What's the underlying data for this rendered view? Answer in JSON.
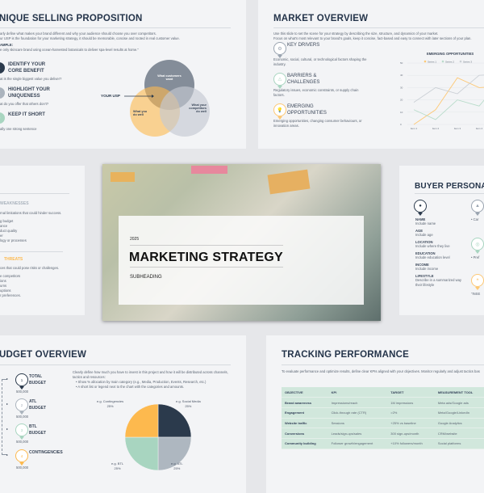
{
  "usp": {
    "title": "NIQUE SELLING PROPOSITION",
    "intro": [
      "arly define what makes your brand different and why your audience should choose you over competitors.",
      "ur USP is the foundation for your marketing strategy, it should be memorable, concise and rooted in real customer value."
    ],
    "example_label": "AMPLE:",
    "example": "e only skincare brand using ocean-harvested botanicals to deliver spa-level results at home.\"",
    "steps": [
      {
        "n": "1",
        "title": "IDENTIFY YOUR CORE BENEFIT",
        "desc": "at is the single biggest value you deliver?",
        "color": "#2b3a4c"
      },
      {
        "n": "2",
        "title": "HIGHLIGHT YOUR UNIQUENESS",
        "desc": "at do you offer that others don't?",
        "color": "#aab3bd"
      },
      {
        "n": "3",
        "title": "KEEP IT SHORT",
        "desc": "ally one strong sentence",
        "color": "#a8d5c0"
      }
    ],
    "venn": {
      "usp_label": "YOUR USP",
      "customers": "What customers want",
      "you": "What you do well",
      "competitors": "What your competitors do well",
      "colors": [
        "#5f6b7a",
        "#fdb94e",
        "#c4cad2"
      ]
    }
  },
  "market": {
    "title": "MARKET OVERVIEW",
    "intro": [
      "Use this slide to set the scene for your strategy by describing the size, structure, and dynamics of your market.",
      "Focus on what's most relevant to your brand's goals, keep it concise, fact-based and easy to connect with later sections of your plan."
    ],
    "items": [
      {
        "icon": "gear-icon",
        "title": "KEY DRIVERS",
        "desc": "Economic, social, cultural, or technological factors shaping the industry.",
        "color": "#9aa4b0"
      },
      {
        "icon": "warning-icon",
        "title": "BARRIERS & CHALLENGES",
        "desc": "Regulatory issues, economic constraints, or supply chain factors.",
        "color": "#a8d5c0"
      },
      {
        "icon": "lightbulb-icon",
        "title": "EMERGING OPPORTUNITIES",
        "desc": "Emerging opportunities, changing consumer behaviours, or innovation areas.",
        "color": "#fdc875"
      }
    ]
  },
  "chart_data": {
    "type": "line",
    "title": "EMERGING OPPORTUNITIES",
    "categories": [
      "Item 1",
      "Item 2",
      "Item 3",
      "Item 4",
      "Item 5"
    ],
    "ylim": [
      0,
      50
    ],
    "yticks": [
      0,
      10,
      20,
      30,
      40,
      50
    ],
    "legend": "top",
    "grid": true,
    "series": [
      {
        "name": "Series 1",
        "values": [
          0,
          12,
          38,
          30,
          31
        ],
        "color": "#fdc875"
      },
      {
        "name": "Series 2",
        "values": [
          12,
          4,
          20,
          15,
          36
        ],
        "color": "#b9dccb"
      },
      {
        "name": "Series 3",
        "values": [
          18,
          30,
          25,
          40,
          41
        ],
        "color": "#cbd0d6"
      }
    ]
  },
  "swot": {
    "weak_title": "WEAKNESSES",
    "weak_desc": "rnal limitations that could hinder success.",
    "weak_items": [
      "g budget",
      "ance",
      "duct quality",
      "er",
      "logy or processes"
    ],
    "threat_title": "THREATS",
    "threat_desc": "ces that could pose risks or challenges.",
    "threat_items": [
      "e competitors",
      "ions",
      "urns",
      "uptions",
      "r preferences."
    ]
  },
  "cover": {
    "year": "2025",
    "title": "MARKETING STRATEGY",
    "subheading": "SUBHEADING"
  },
  "persona": {
    "title": "BUYER PERSONA",
    "fields": [
      {
        "label": "NAME",
        "value": "Include name"
      },
      {
        "label": "AGE",
        "value": "Include age"
      },
      {
        "label": "LOCATION",
        "value": "Include where they live"
      },
      {
        "label": "EDUCATION",
        "value": "Include education level"
      },
      {
        "label": "INCOME",
        "value": "Include income"
      },
      {
        "label": "LIFESTYLE",
        "value": "Describe in a summarized way their lifestyle"
      }
    ],
    "side": [
      "• Car",
      "• Pref",
      "\"INSE"
    ]
  },
  "budget": {
    "title": "UDGET OVERVIEW",
    "intro": "Clearly define how much you have to invest in this project and how it will be distributed across channels, tactics and resources:",
    "bullets": [
      "Show % allocation by main category (e.g., Media, Production, Events, Research, etc.)",
      "A short list or legend next to the chart with the categories and amounts."
    ],
    "items": [
      {
        "n": "1",
        "title": "TOTAL BUDGET",
        "amount": "500,000",
        "color": "#2b3a4c"
      },
      {
        "n": "2",
        "title": "ATL BUDGET",
        "amount": "500,000",
        "color": "#aab3bd"
      },
      {
        "n": "3",
        "title": "BTL BUDGET",
        "amount": "500,000",
        "color": "#a8d5c0"
      },
      {
        "n": "4",
        "title": "CONTINGENCIES",
        "amount": "500,000",
        "color": "#fdb94e"
      }
    ],
    "pie": [
      {
        "label": "e.g. Social Media",
        "pct": "25%",
        "value": 25,
        "color": "#2b3a4c"
      },
      {
        "label": "e.g. ATL",
        "pct": "25%",
        "value": 25,
        "color": "#aeb7c0"
      },
      {
        "label": "e.g. BTL",
        "pct": "25%",
        "value": 25,
        "color": "#a8d5c0"
      },
      {
        "label": "e.g. Contingencies",
        "pct": "25%",
        "value": 25,
        "color": "#fdb94e"
      }
    ]
  },
  "tracking": {
    "title": "TRACKING PERFORMANCE",
    "intro": "To evaluate performance and optimize results, define clear KPIs aligned with your objectives. Monitor regularly and adjust tactics bas",
    "headers": [
      "OBJECTIVE",
      "KPI",
      "TARGET",
      "MEASUREMENT TOOL",
      "PE"
    ],
    "rows": [
      [
        "Brand awareness",
        "Impressions/reach",
        "1M impressions",
        "Meta ads/Google ads",
        "W"
      ],
      [
        "Engagement",
        "Click-through rate (CTR)",
        ">2%",
        "Meta/Google/LinkedIn",
        "W"
      ],
      [
        "Website traffic",
        "Sessions",
        "+25% vs baseline",
        "Google Analytics",
        "M"
      ],
      [
        "Conversions",
        "Leads/sign-ups/sales",
        "300 sign-ups/month",
        "CRM/website",
        "W"
      ],
      [
        "Community building",
        "Follower growth/engagement",
        "+10% followers/month",
        "Social platforms",
        "M"
      ]
    ]
  }
}
